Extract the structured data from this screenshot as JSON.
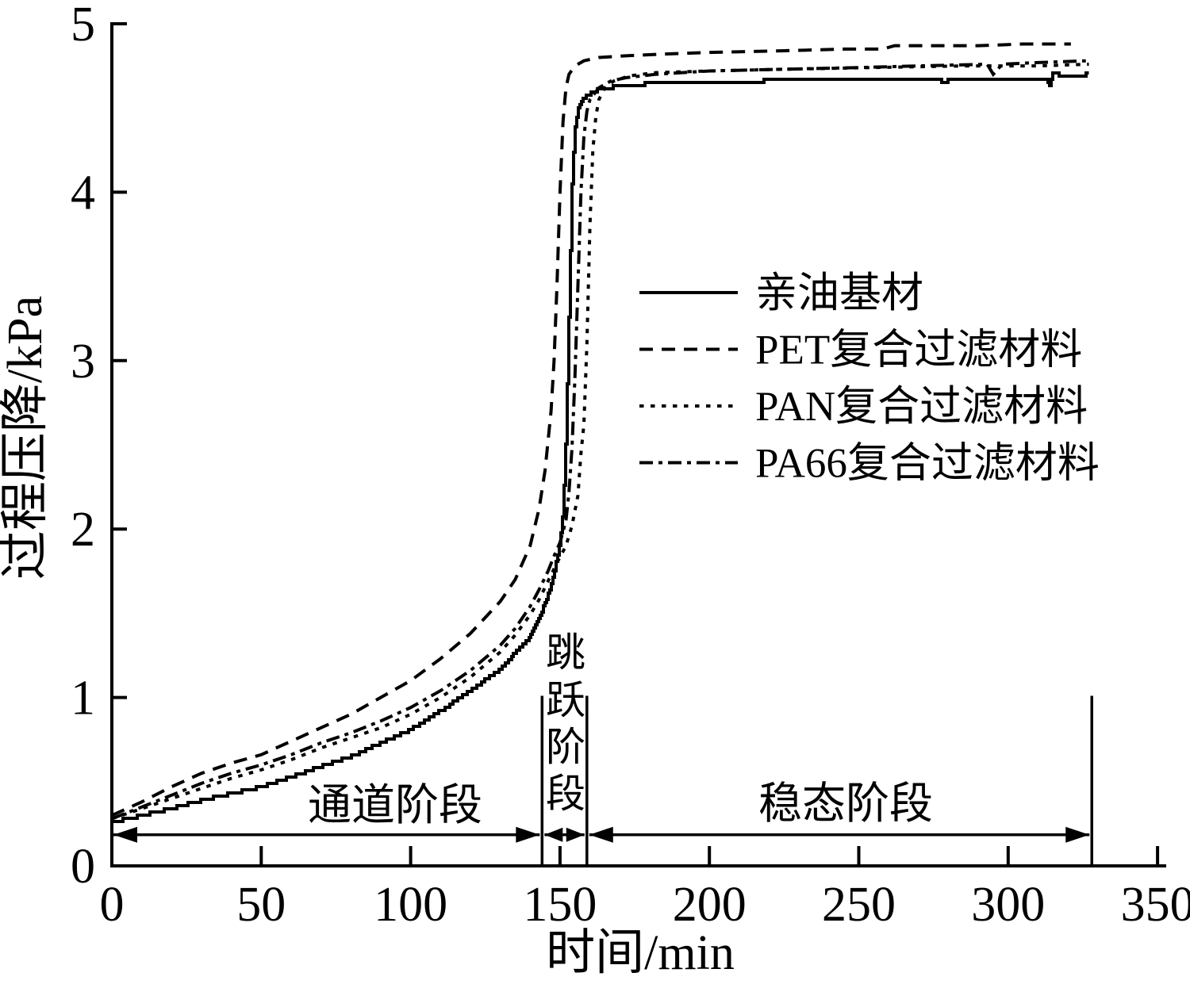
{
  "figure": {
    "background_color": "#ffffff",
    "ink_color": "#000000"
  },
  "chart_data": {
    "type": "line",
    "title": "",
    "xlabel": "时间/min",
    "ylabel": "过程压降/kPa",
    "xlim": [
      0,
      350
    ],
    "ylim": [
      0,
      5
    ],
    "x_ticks": [
      0,
      50,
      100,
      150,
      200,
      250,
      300,
      350
    ],
    "y_ticks": [
      0,
      1,
      2,
      3,
      4,
      5
    ],
    "grid": false,
    "legend_position": "inside upper-right, no frame",
    "series": [
      {
        "name": "亲油基材",
        "style": "solid",
        "points": [
          [
            0,
            0.26
          ],
          [
            10,
            0.3
          ],
          [
            20,
            0.34
          ],
          [
            30,
            0.39
          ],
          [
            40,
            0.43
          ],
          [
            50,
            0.47
          ],
          [
            60,
            0.53
          ],
          [
            70,
            0.59
          ],
          [
            80,
            0.65
          ],
          [
            90,
            0.73
          ],
          [
            100,
            0.81
          ],
          [
            110,
            0.92
          ],
          [
            120,
            1.04
          ],
          [
            130,
            1.17
          ],
          [
            140,
            1.36
          ],
          [
            143,
            1.47
          ],
          [
            146,
            1.61
          ],
          [
            148,
            1.74
          ],
          [
            150,
            1.92
          ],
          [
            151,
            2.1
          ],
          [
            152,
            2.55
          ],
          [
            153,
            3.3
          ],
          [
            154,
            4.05
          ],
          [
            155,
            4.38
          ],
          [
            156,
            4.5
          ],
          [
            158,
            4.56
          ],
          [
            161,
            4.6
          ],
          [
            166,
            4.62
          ],
          [
            175,
            4.64
          ],
          [
            190,
            4.65
          ],
          [
            215,
            4.66
          ],
          [
            245,
            4.67
          ],
          [
            277,
            4.67
          ],
          [
            278,
            4.64
          ],
          [
            280,
            4.67
          ],
          [
            305,
            4.67
          ],
          [
            313,
            4.67
          ],
          [
            314,
            4.63
          ],
          [
            315,
            4.71
          ],
          [
            318,
            4.69
          ],
          [
            327,
            4.7
          ]
        ]
      },
      {
        "name": "PET复合过滤材料",
        "style": "dashed",
        "points": [
          [
            0,
            0.3
          ],
          [
            10,
            0.38
          ],
          [
            20,
            0.47
          ],
          [
            30,
            0.55
          ],
          [
            40,
            0.61
          ],
          [
            50,
            0.66
          ],
          [
            60,
            0.74
          ],
          [
            70,
            0.82
          ],
          [
            80,
            0.9
          ],
          [
            90,
            1.0
          ],
          [
            100,
            1.1
          ],
          [
            110,
            1.23
          ],
          [
            120,
            1.38
          ],
          [
            130,
            1.57
          ],
          [
            135,
            1.7
          ],
          [
            140,
            1.9
          ],
          [
            143,
            2.12
          ],
          [
            145,
            2.35
          ],
          [
            147,
            2.7
          ],
          [
            148,
            3.0
          ],
          [
            149,
            3.45
          ],
          [
            150,
            4.0
          ],
          [
            151,
            4.42
          ],
          [
            152,
            4.62
          ],
          [
            153,
            4.7
          ],
          [
            155,
            4.75
          ],
          [
            158,
            4.78
          ],
          [
            163,
            4.8
          ],
          [
            172,
            4.81
          ],
          [
            185,
            4.82
          ],
          [
            200,
            4.83
          ],
          [
            225,
            4.84
          ],
          [
            245,
            4.85
          ],
          [
            258,
            4.85
          ],
          [
            262,
            4.87
          ],
          [
            275,
            4.87
          ],
          [
            290,
            4.87
          ],
          [
            305,
            4.88
          ],
          [
            321,
            4.88
          ]
        ]
      },
      {
        "name": "PAN复合过滤材料",
        "style": "dotted",
        "points": [
          [
            0,
            0.28
          ],
          [
            10,
            0.34
          ],
          [
            20,
            0.4
          ],
          [
            30,
            0.46
          ],
          [
            40,
            0.52
          ],
          [
            50,
            0.57
          ],
          [
            60,
            0.63
          ],
          [
            70,
            0.7
          ],
          [
            80,
            0.76
          ],
          [
            90,
            0.82
          ],
          [
            100,
            0.9
          ],
          [
            110,
            1.0
          ],
          [
            120,
            1.12
          ],
          [
            130,
            1.27
          ],
          [
            135,
            1.37
          ],
          [
            140,
            1.49
          ],
          [
            143,
            1.58
          ],
          [
            146,
            1.69
          ],
          [
            149,
            1.8
          ],
          [
            152,
            1.9
          ],
          [
            154,
            2.02
          ],
          [
            156,
            2.2
          ],
          [
            157,
            2.45
          ],
          [
            158,
            2.62
          ],
          [
            159,
            3.1
          ],
          [
            160,
            3.8
          ],
          [
            161,
            4.25
          ],
          [
            162,
            4.45
          ],
          [
            163,
            4.55
          ],
          [
            165,
            4.62
          ],
          [
            168,
            4.66
          ],
          [
            173,
            4.69
          ],
          [
            182,
            4.71
          ],
          [
            200,
            4.72
          ],
          [
            225,
            4.73
          ],
          [
            255,
            4.74
          ],
          [
            285,
            4.75
          ],
          [
            310,
            4.75
          ],
          [
            327,
            4.76
          ]
        ]
      },
      {
        "name": "PA66复合过滤材料",
        "style": "dashdot",
        "points": [
          [
            0,
            0.28
          ],
          [
            10,
            0.35
          ],
          [
            20,
            0.42
          ],
          [
            30,
            0.49
          ],
          [
            40,
            0.55
          ],
          [
            50,
            0.6
          ],
          [
            60,
            0.66
          ],
          [
            70,
            0.73
          ],
          [
            80,
            0.79
          ],
          [
            90,
            0.86
          ],
          [
            100,
            0.94
          ],
          [
            110,
            1.04
          ],
          [
            120,
            1.16
          ],
          [
            130,
            1.31
          ],
          [
            135,
            1.41
          ],
          [
            140,
            1.54
          ],
          [
            143,
            1.64
          ],
          [
            146,
            1.75
          ],
          [
            148,
            1.84
          ],
          [
            150,
            1.92
          ],
          [
            152,
            2.05
          ],
          [
            153,
            2.22
          ],
          [
            154,
            2.48
          ],
          [
            155,
            2.9
          ],
          [
            156,
            3.45
          ],
          [
            157,
            4.0
          ],
          [
            158,
            4.33
          ],
          [
            159,
            4.48
          ],
          [
            160,
            4.55
          ],
          [
            163,
            4.62
          ],
          [
            167,
            4.66
          ],
          [
            172,
            4.68
          ],
          [
            182,
            4.7
          ],
          [
            200,
            4.72
          ],
          [
            225,
            4.73
          ],
          [
            250,
            4.74
          ],
          [
            270,
            4.75
          ],
          [
            293,
            4.76
          ],
          [
            295,
            4.7
          ],
          [
            298,
            4.76
          ],
          [
            310,
            4.77
          ],
          [
            326,
            4.78
          ]
        ]
      }
    ],
    "annotations": {
      "stages": [
        {
          "label": "通道阶段",
          "t_from": 0,
          "t_to": 144,
          "orientation": "horizontal"
        },
        {
          "label": "跳跃阶段",
          "t_from": 144,
          "t_to": 159,
          "orientation": "vertical"
        },
        {
          "label": "稳态阶段",
          "t_from": 159,
          "t_to": 328,
          "orientation": "horizontal"
        }
      ],
      "boundary_lines_t": [
        144,
        159,
        328
      ],
      "boundary_line_top_kpa": 1.01,
      "arrow_y_kpa": 0.185
    }
  }
}
